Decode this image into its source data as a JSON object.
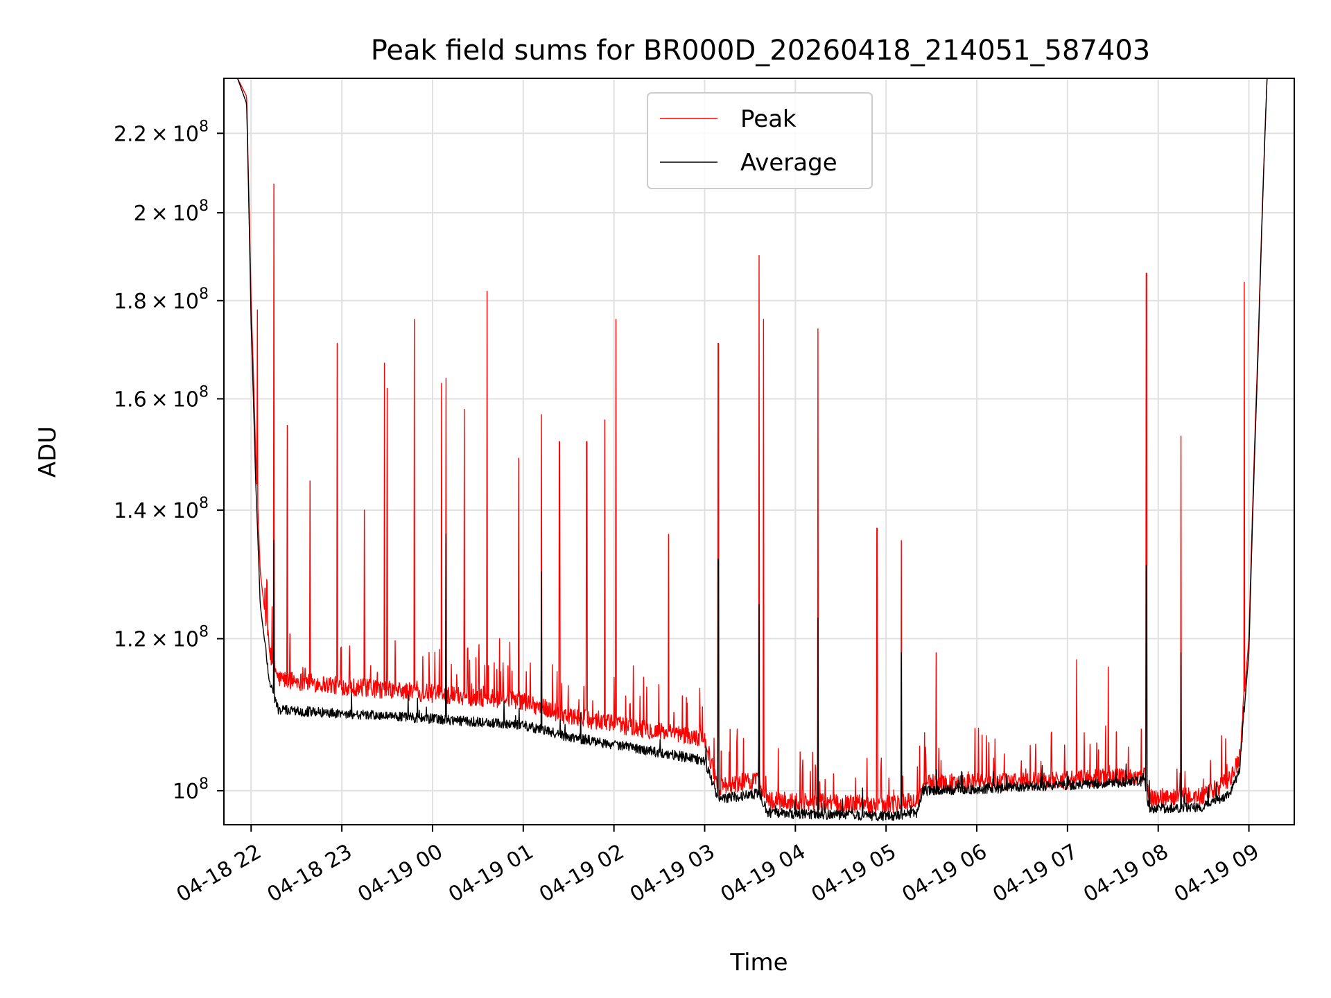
{
  "chart_data": {
    "type": "line",
    "title": "Peak field sums for BR000D_20260418_214051_587403",
    "xlabel": "Time",
    "ylabel": "ADU",
    "yscale": "log",
    "ylim": [
      96000000,
      235000000
    ],
    "xlim_hours": [
      -0.3,
      11.5
    ],
    "x_ticks": [
      {
        "hour": 0,
        "label": "04-18 22"
      },
      {
        "hour": 1,
        "label": "04-18 23"
      },
      {
        "hour": 2,
        "label": "04-19 00"
      },
      {
        "hour": 3,
        "label": "04-19 01"
      },
      {
        "hour": 4,
        "label": "04-19 02"
      },
      {
        "hour": 5,
        "label": "04-19 03"
      },
      {
        "hour": 6,
        "label": "04-19 04"
      },
      {
        "hour": 7,
        "label": "04-19 05"
      },
      {
        "hour": 8,
        "label": "04-19 06"
      },
      {
        "hour": 9,
        "label": "04-19 07"
      },
      {
        "hour": 10,
        "label": "04-19 08"
      },
      {
        "hour": 11,
        "label": "04-19 09"
      }
    ],
    "y_ticks": [
      {
        "value": 100000000,
        "mantissa": "",
        "exp": "8"
      },
      {
        "value": 120000000,
        "mantissa": "1.2",
        "exp": "8"
      },
      {
        "value": 140000000,
        "mantissa": "1.4",
        "exp": "8"
      },
      {
        "value": 160000000,
        "mantissa": "1.6",
        "exp": "8"
      },
      {
        "value": 180000000,
        "mantissa": "1.8",
        "exp": "8"
      },
      {
        "value": 200000000,
        "mantissa": "2",
        "exp": "8"
      },
      {
        "value": 220000000,
        "mantissa": "2.2",
        "exp": "8"
      }
    ],
    "grid": true,
    "legend_position": "top-center",
    "series": [
      {
        "name": "Peak",
        "color": "#ff0000",
        "baseline": [
          [
            -0.3,
            235000000
          ],
          [
            -0.15,
            235000000
          ],
          [
            -0.05,
            230000000
          ],
          [
            0.0,
            180000000
          ],
          [
            0.05,
            150000000
          ],
          [
            0.1,
            130000000
          ],
          [
            0.2,
            118000000
          ],
          [
            0.3,
            114000000
          ],
          [
            1.0,
            113000000
          ],
          [
            2.0,
            112000000
          ],
          [
            3.0,
            111000000
          ],
          [
            3.5,
            109000000
          ],
          [
            4.0,
            108000000
          ],
          [
            5.0,
            106000000
          ],
          [
            5.15,
            100000000
          ],
          [
            5.6,
            101000000
          ],
          [
            5.7,
            98500000
          ],
          [
            7.0,
            98000000
          ],
          [
            7.35,
            98500000
          ],
          [
            7.4,
            100500000
          ],
          [
            8.0,
            100700000
          ],
          [
            9.0,
            101000000
          ],
          [
            9.85,
            101500000
          ],
          [
            9.9,
            98800000
          ],
          [
            10.5,
            99000000
          ],
          [
            10.8,
            101000000
          ],
          [
            10.9,
            104000000
          ],
          [
            11.0,
            120000000
          ],
          [
            11.1,
            170000000
          ],
          [
            11.2,
            235000000
          ],
          [
            11.5,
            235000000
          ]
        ],
        "spikes": [
          {
            "hour": -0.03,
            "value": 209000000
          },
          {
            "hour": 0.07,
            "value": 178000000
          },
          {
            "hour": 0.25,
            "value": 207000000
          },
          {
            "hour": 0.4,
            "value": 155000000
          },
          {
            "hour": 0.65,
            "value": 145000000
          },
          {
            "hour": 0.95,
            "value": 171000000
          },
          {
            "hour": 1.25,
            "value": 140000000
          },
          {
            "hour": 1.47,
            "value": 167000000
          },
          {
            "hour": 1.5,
            "value": 162000000
          },
          {
            "hour": 1.8,
            "value": 176000000
          },
          {
            "hour": 2.1,
            "value": 163000000
          },
          {
            "hour": 2.15,
            "value": 164000000
          },
          {
            "hour": 2.35,
            "value": 158000000
          },
          {
            "hour": 2.6,
            "value": 182000000
          },
          {
            "hour": 2.95,
            "value": 149000000
          },
          {
            "hour": 3.2,
            "value": 157000000
          },
          {
            "hour": 3.4,
            "value": 152000000
          },
          {
            "hour": 3.7,
            "value": 152000000
          },
          {
            "hour": 3.9,
            "value": 156000000
          },
          {
            "hour": 4.02,
            "value": 176000000
          },
          {
            "hour": 4.6,
            "value": 136000000
          },
          {
            "hour": 5.15,
            "value": 171000000
          },
          {
            "hour": 5.6,
            "value": 190000000
          },
          {
            "hour": 5.65,
            "value": 176000000
          },
          {
            "hour": 6.25,
            "value": 174000000
          },
          {
            "hour": 6.9,
            "value": 137000000
          },
          {
            "hour": 7.17,
            "value": 135000000
          },
          {
            "hour": 7.55,
            "value": 118000000
          },
          {
            "hour": 9.1,
            "value": 117000000
          },
          {
            "hour": 9.45,
            "value": 116000000
          },
          {
            "hour": 9.87,
            "value": 186000000
          },
          {
            "hour": 10.25,
            "value": 153000000
          },
          {
            "hour": 10.95,
            "value": 184000000
          }
        ]
      },
      {
        "name": "Average",
        "color": "#000000",
        "baseline": [
          [
            -0.3,
            235000000
          ],
          [
            -0.15,
            235000000
          ],
          [
            -0.05,
            228000000
          ],
          [
            0.0,
            175000000
          ],
          [
            0.05,
            145000000
          ],
          [
            0.1,
            125000000
          ],
          [
            0.2,
            114000000
          ],
          [
            0.3,
            110000000
          ],
          [
            1.0,
            109500000
          ],
          [
            2.0,
            108800000
          ],
          [
            3.0,
            108000000
          ],
          [
            3.5,
            106500000
          ],
          [
            4.0,
            105500000
          ],
          [
            5.0,
            103500000
          ],
          [
            5.15,
            98800000
          ],
          [
            5.6,
            99500000
          ],
          [
            5.7,
            97200000
          ],
          [
            7.0,
            96800000
          ],
          [
            7.35,
            97200000
          ],
          [
            7.4,
            99800000
          ],
          [
            8.0,
            100000000
          ],
          [
            9.0,
            100500000
          ],
          [
            9.85,
            101000000
          ],
          [
            9.9,
            97700000
          ],
          [
            10.5,
            97900000
          ],
          [
            10.8,
            99500000
          ],
          [
            10.9,
            102500000
          ],
          [
            11.0,
            118000000
          ],
          [
            11.1,
            168000000
          ],
          [
            11.2,
            235000000
          ],
          [
            11.5,
            235000000
          ]
        ],
        "spikes": [
          {
            "hour": 0.25,
            "value": 135000000
          },
          {
            "hour": 2.15,
            "value": 136000000
          },
          {
            "hour": 3.2,
            "value": 130000000
          },
          {
            "hour": 5.15,
            "value": 132000000
          },
          {
            "hour": 5.6,
            "value": 125000000
          },
          {
            "hour": 6.25,
            "value": 123000000
          },
          {
            "hour": 7.17,
            "value": 118000000
          },
          {
            "hour": 9.87,
            "value": 131000000
          },
          {
            "hour": 10.25,
            "value": 118000000
          }
        ]
      }
    ]
  }
}
